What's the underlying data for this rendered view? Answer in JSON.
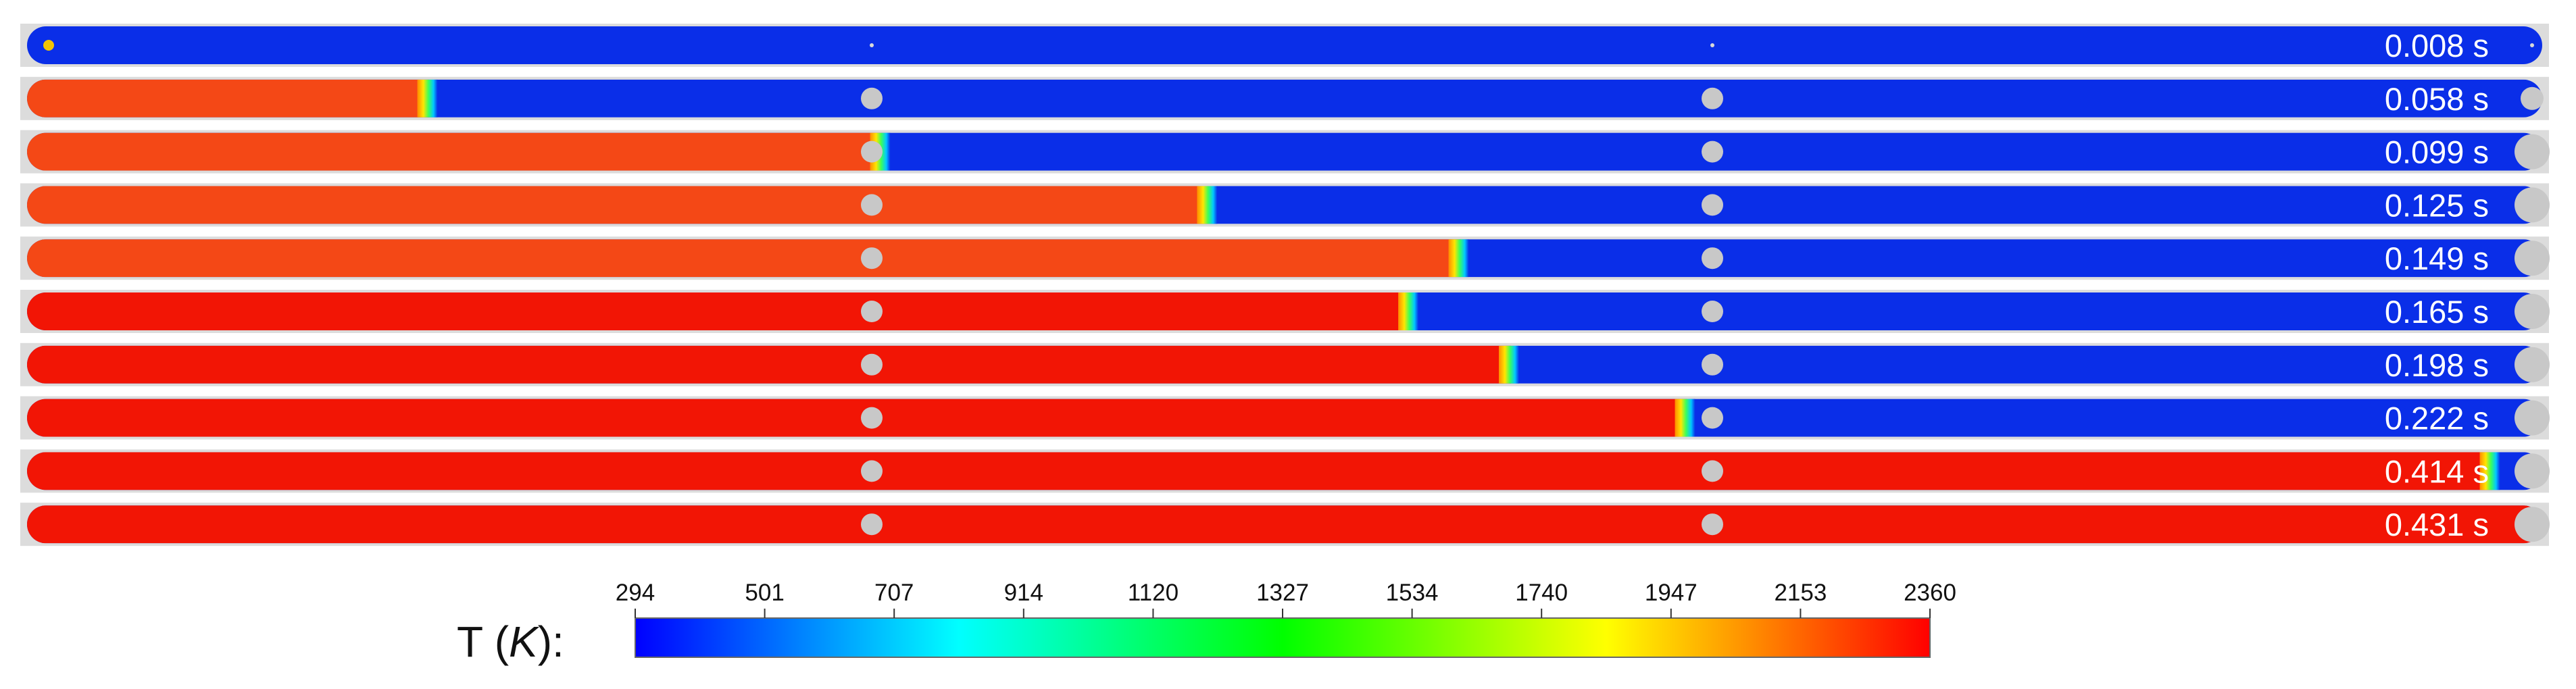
{
  "figure": {
    "colorbar": {
      "quantity": "T",
      "unit": "K",
      "title_open": "T (",
      "title_unit": "K",
      "title_close": "):",
      "ticks": [
        "294",
        "501",
        "707",
        "914",
        "1120",
        "1327",
        "1534",
        "1740",
        "1947",
        "2153",
        "2360"
      ],
      "min": 294,
      "max": 2360,
      "colormap": [
        "#0000ff",
        "#00ffff",
        "#00ff00",
        "#ffff00",
        "#ff0000"
      ]
    },
    "colors": {
      "cold": "#0a2ee8",
      "hot_late": "#f21505",
      "hot_early": "#f44816",
      "particle": "#c8c8c8"
    },
    "frames": [
      {
        "time_label": "0.008 s",
        "flame_front_fraction": 0.0,
        "particles_visible": false
      },
      {
        "time_label": "0.058 s",
        "flame_front_fraction": 0.16,
        "particles_visible": true
      },
      {
        "time_label": "0.099 s",
        "flame_front_fraction": 0.34,
        "particles_visible": true
      },
      {
        "time_label": "0.125 s",
        "flame_front_fraction": 0.47,
        "particles_visible": true
      },
      {
        "time_label": "0.149 s",
        "flame_front_fraction": 0.57,
        "particles_visible": true
      },
      {
        "time_label": "0.165 s",
        "flame_front_fraction": 0.55,
        "particles_visible": true
      },
      {
        "time_label": "0.198 s",
        "flame_front_fraction": 0.59,
        "particles_visible": true
      },
      {
        "time_label": "0.222 s",
        "flame_front_fraction": 0.66,
        "particles_visible": true
      },
      {
        "time_label": "0.414 s",
        "flame_front_fraction": 0.98,
        "particles_visible": true
      },
      {
        "time_label": "0.431 s",
        "flame_front_fraction": 1.0,
        "particles_visible": true
      }
    ]
  }
}
